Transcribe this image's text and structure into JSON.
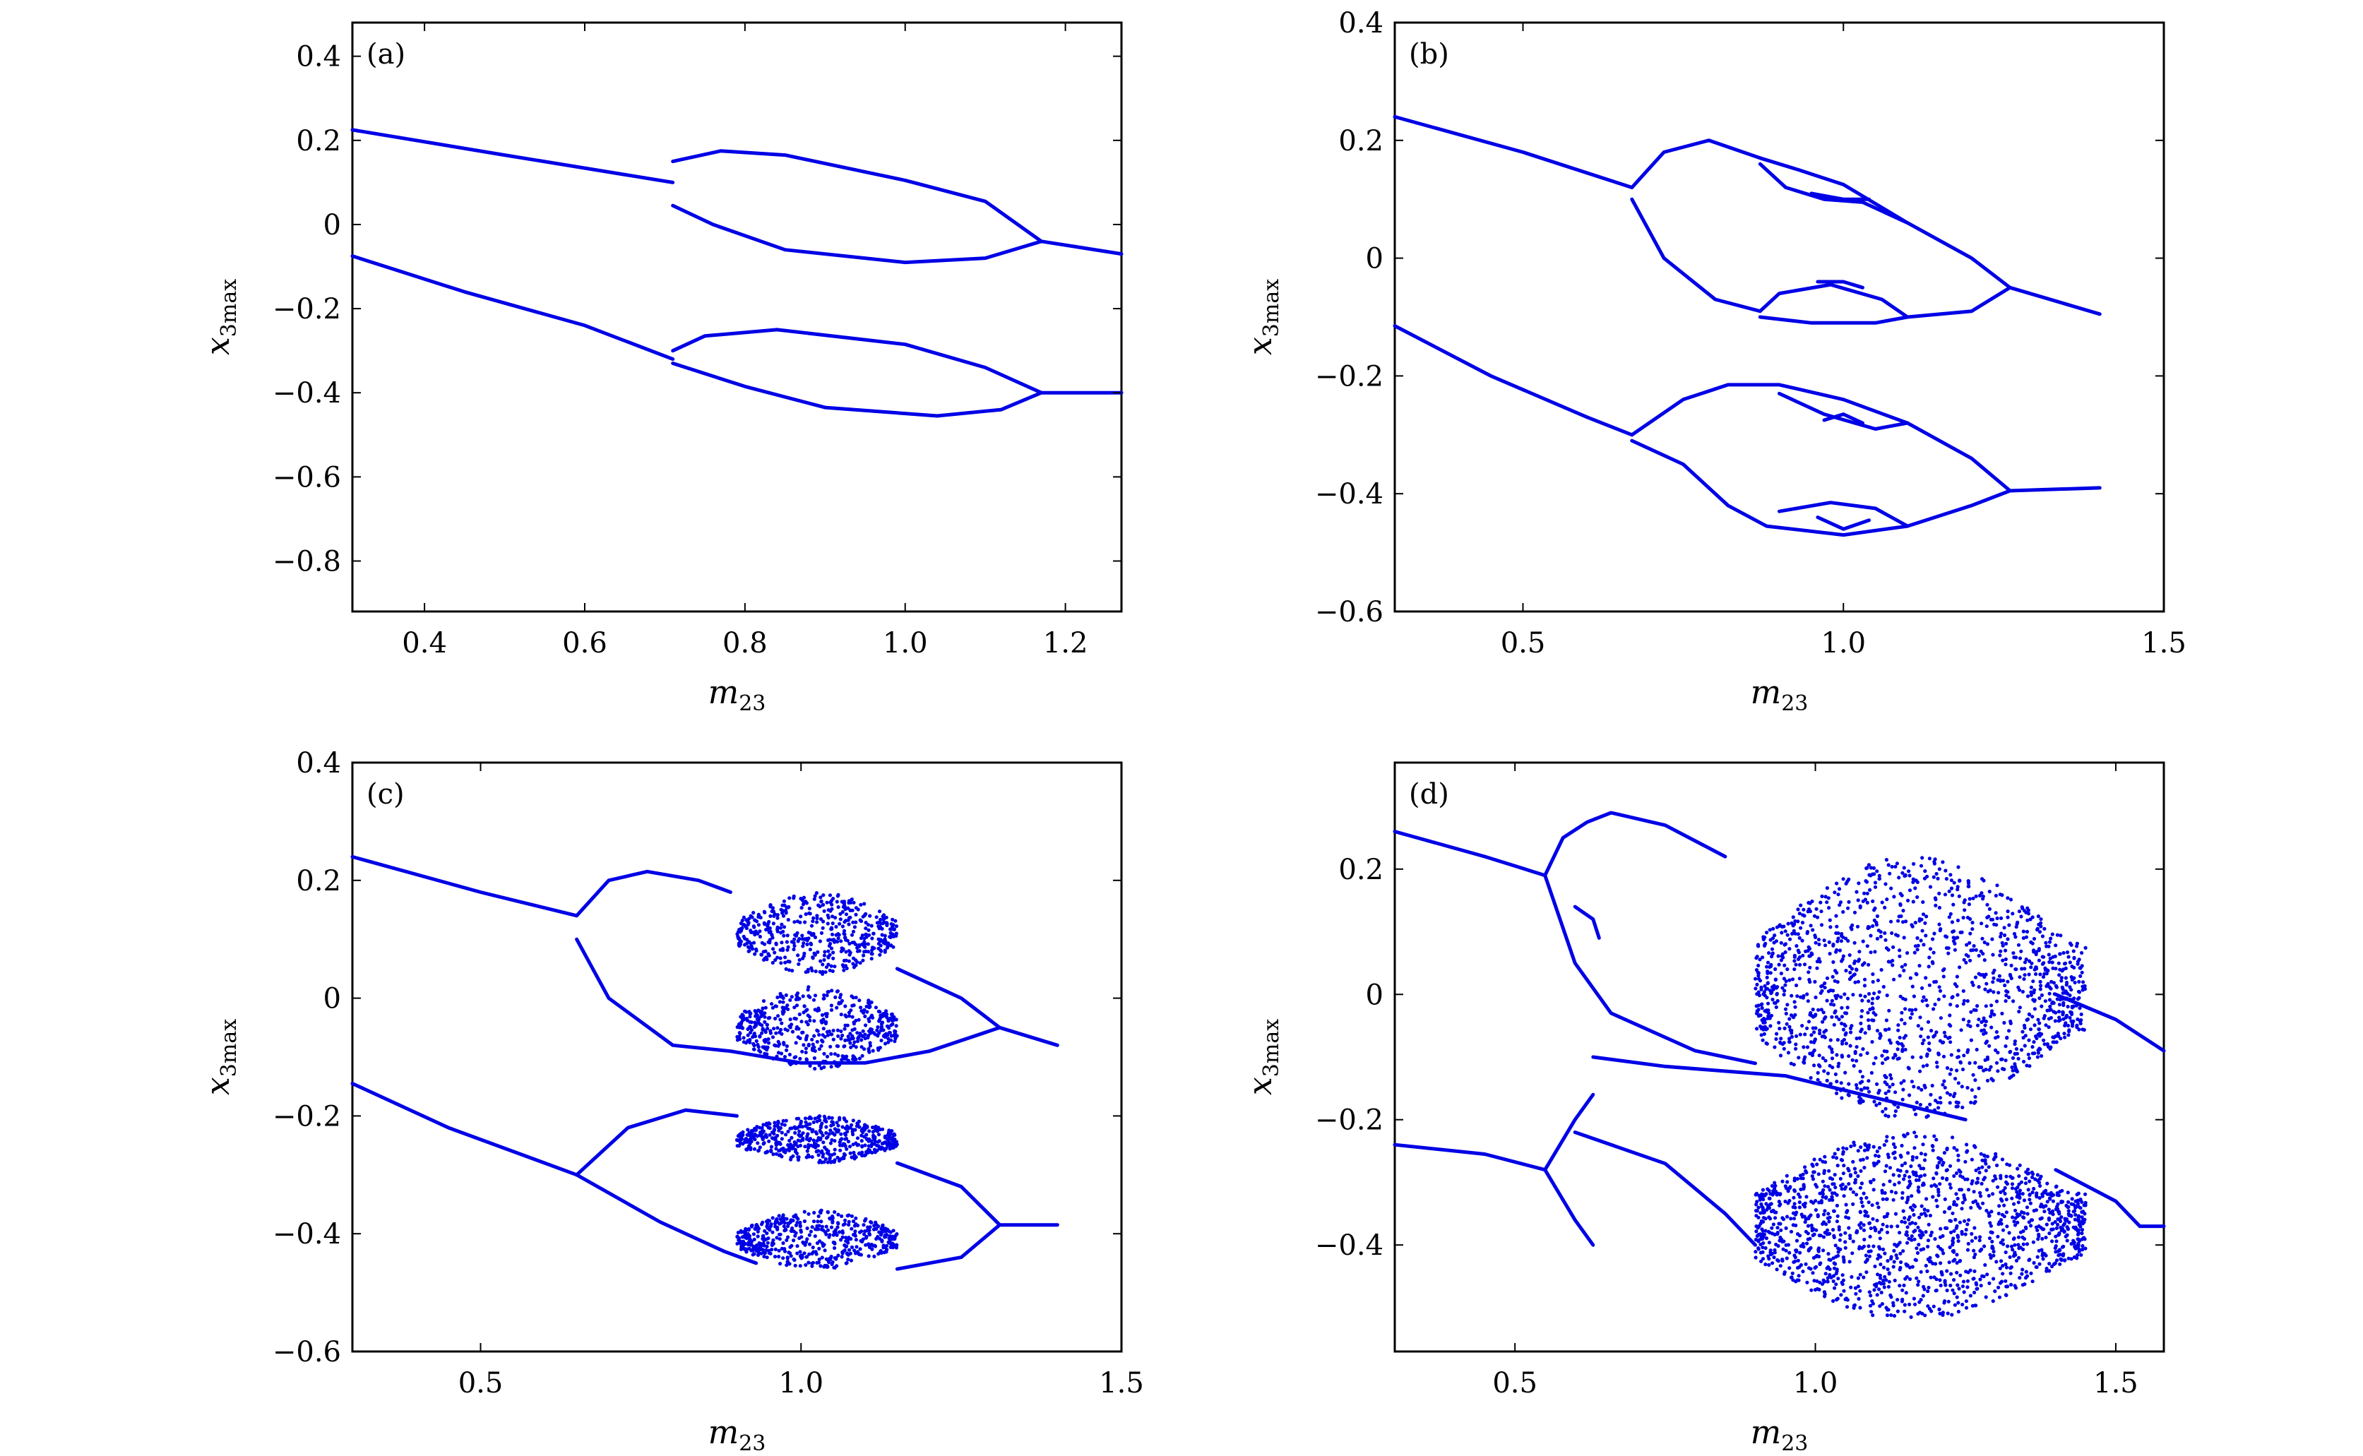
{
  "figure": {
    "accent_color": "#0000e6",
    "panels": [
      {
        "id": "a",
        "label": "(a)",
        "xlabel": "m23",
        "xlabel_main": "m",
        "xlabel_sub": "23",
        "ylabel_main": "x",
        "ylabel_sub": "3max"
      },
      {
        "id": "b",
        "label": "(b)",
        "xlabel": "m23",
        "xlabel_main": "m",
        "xlabel_sub": "23",
        "ylabel_main": "x",
        "ylabel_sub": "3max"
      },
      {
        "id": "c",
        "label": "(c)",
        "xlabel": "m23",
        "xlabel_main": "m",
        "xlabel_sub": "23",
        "ylabel_main": "x",
        "ylabel_sub": "3max"
      },
      {
        "id": "d",
        "label": "(d)",
        "xlabel": "m23",
        "xlabel_main": "m",
        "xlabel_sub": "23",
        "ylabel_main": "x",
        "ylabel_sub": "3max"
      }
    ]
  },
  "chart_data": [
    {
      "type": "scatter",
      "panel": "(a)",
      "xlabel": "m23",
      "ylabel": "x3max",
      "xlim": [
        0.31,
        1.27
      ],
      "ylim": [
        -0.92,
        0.48
      ],
      "xticks": [
        0.4,
        0.6,
        0.8,
        1.0,
        1.2
      ],
      "xtick_labels": [
        "0.4",
        "0.6",
        "0.8",
        "1.0",
        "1.2"
      ],
      "yticks": [
        0.4,
        0.2,
        0,
        -0.2,
        -0.4,
        -0.6,
        -0.8
      ],
      "ytick_labels": [
        "0.4",
        "0.2",
        "0",
        "−0.2",
        "−0.4",
        "−0.6",
        "−0.8"
      ],
      "series": [
        {
          "points": [
            [
              0.31,
              0.225
            ],
            [
              0.5,
              0.165
            ],
            [
              0.71,
              0.1
            ]
          ]
        },
        {
          "points": [
            [
              0.71,
              0.15
            ],
            [
              0.77,
              0.175
            ],
            [
              0.85,
              0.165
            ],
            [
              1.0,
              0.105
            ],
            [
              1.1,
              0.055
            ],
            [
              1.17,
              -0.04
            ]
          ]
        },
        {
          "points": [
            [
              0.71,
              0.045
            ],
            [
              0.76,
              0.0
            ],
            [
              0.85,
              -0.06
            ],
            [
              1.0,
              -0.09
            ],
            [
              1.1,
              -0.08
            ],
            [
              1.17,
              -0.04
            ]
          ]
        },
        {
          "points": [
            [
              1.17,
              -0.04
            ],
            [
              1.27,
              -0.07
            ]
          ]
        },
        {
          "points": [
            [
              0.31,
              -0.075
            ],
            [
              0.45,
              -0.16
            ],
            [
              0.6,
              -0.24
            ],
            [
              0.71,
              -0.32
            ]
          ]
        },
        {
          "points": [
            [
              0.71,
              -0.3
            ],
            [
              0.75,
              -0.265
            ],
            [
              0.84,
              -0.25
            ],
            [
              1.0,
              -0.285
            ],
            [
              1.1,
              -0.34
            ],
            [
              1.17,
              -0.4
            ]
          ]
        },
        {
          "points": [
            [
              0.71,
              -0.33
            ],
            [
              0.8,
              -0.385
            ],
            [
              0.9,
              -0.435
            ],
            [
              1.04,
              -0.455
            ],
            [
              1.12,
              -0.44
            ],
            [
              1.17,
              -0.4
            ]
          ]
        },
        {
          "points": [
            [
              1.17,
              -0.4
            ],
            [
              1.27,
              -0.4
            ]
          ]
        }
      ]
    },
    {
      "type": "scatter",
      "panel": "(b)",
      "xlabel": "m23",
      "ylabel": "x3max",
      "xlim": [
        0.3,
        1.5
      ],
      "ylim": [
        -0.6,
        0.4
      ],
      "xticks": [
        0.5,
        1.0,
        1.5
      ],
      "xtick_labels": [
        "0.5",
        "1.0",
        "1.5"
      ],
      "yticks": [
        0.4,
        0.2,
        0,
        -0.2,
        -0.4,
        -0.6
      ],
      "ytick_labels": [
        "0.4",
        "0.2",
        "0",
        "−0.2",
        "−0.4",
        "−0.6"
      ],
      "series": [
        {
          "points": [
            [
              0.3,
              0.24
            ],
            [
              0.5,
              0.18
            ],
            [
              0.67,
              0.12
            ]
          ]
        },
        {
          "points": [
            [
              0.67,
              0.12
            ],
            [
              0.72,
              0.18
            ],
            [
              0.79,
              0.2
            ],
            [
              0.87,
              0.17
            ]
          ]
        },
        {
          "points": [
            [
              0.67,
              0.1
            ],
            [
              0.72,
              0.0
            ],
            [
              0.8,
              -0.07
            ],
            [
              0.87,
              -0.09
            ]
          ]
        },
        {
          "points": [
            [
              0.87,
              0.17
            ],
            [
              0.93,
              0.15
            ],
            [
              1.0,
              0.125
            ],
            [
              1.1,
              0.06
            ],
            [
              1.2,
              0.0
            ],
            [
              1.26,
              -0.05
            ]
          ]
        },
        {
          "points": [
            [
              0.87,
              0.16
            ],
            [
              0.91,
              0.12
            ],
            [
              0.97,
              0.1
            ],
            [
              1.03,
              0.095
            ],
            [
              1.1,
              0.06
            ]
          ]
        },
        {
          "points": [
            [
              0.87,
              -0.09
            ],
            [
              0.9,
              -0.06
            ],
            [
              0.98,
              -0.045
            ],
            [
              1.06,
              -0.07
            ],
            [
              1.1,
              -0.1
            ]
          ]
        },
        {
          "points": [
            [
              0.87,
              -0.1
            ],
            [
              0.95,
              -0.11
            ],
            [
              1.05,
              -0.11
            ],
            [
              1.1,
              -0.1
            ]
          ]
        },
        {
          "points": [
            [
              1.1,
              -0.1
            ],
            [
              1.2,
              -0.09
            ],
            [
              1.26,
              -0.05
            ]
          ]
        },
        {
          "points": [
            [
              1.26,
              -0.05
            ],
            [
              1.4,
              -0.095
            ]
          ]
        },
        {
          "points": [
            [
              0.95,
              0.11
            ],
            [
              1.0,
              0.1
            ],
            [
              1.04,
              0.1
            ]
          ]
        },
        {
          "points": [
            [
              0.96,
              -0.04
            ],
            [
              1.0,
              -0.04
            ],
            [
              1.03,
              -0.05
            ]
          ]
        },
        {
          "points": [
            [
              0.3,
              -0.115
            ],
            [
              0.45,
              -0.2
            ],
            [
              0.6,
              -0.27
            ],
            [
              0.67,
              -0.3
            ]
          ]
        },
        {
          "points": [
            [
              0.67,
              -0.3
            ],
            [
              0.75,
              -0.24
            ],
            [
              0.82,
              -0.215
            ],
            [
              0.9,
              -0.215
            ],
            [
              1.0,
              -0.24
            ],
            [
              1.1,
              -0.28
            ],
            [
              1.2,
              -0.34
            ],
            [
              1.26,
              -0.395
            ]
          ]
        },
        {
          "points": [
            [
              0.67,
              -0.31
            ],
            [
              0.75,
              -0.35
            ],
            [
              0.82,
              -0.42
            ],
            [
              0.88,
              -0.455
            ],
            [
              1.0,
              -0.47
            ],
            [
              1.1,
              -0.455
            ],
            [
              1.2,
              -0.42
            ],
            [
              1.26,
              -0.395
            ]
          ]
        },
        {
          "points": [
            [
              0.9,
              -0.23
            ],
            [
              0.97,
              -0.265
            ],
            [
              1.05,
              -0.29
            ],
            [
              1.1,
              -0.28
            ]
          ]
        },
        {
          "points": [
            [
              0.9,
              -0.43
            ],
            [
              0.98,
              -0.415
            ],
            [
              1.05,
              -0.425
            ],
            [
              1.1,
              -0.455
            ]
          ]
        },
        {
          "points": [
            [
              0.97,
              -0.275
            ],
            [
              1.0,
              -0.265
            ],
            [
              1.03,
              -0.28
            ]
          ]
        },
        {
          "points": [
            [
              0.96,
              -0.44
            ],
            [
              1.0,
              -0.46
            ],
            [
              1.04,
              -0.445
            ]
          ]
        },
        {
          "points": [
            [
              1.26,
              -0.395
            ],
            [
              1.4,
              -0.39
            ]
          ]
        }
      ]
    },
    {
      "type": "scatter",
      "panel": "(c)",
      "xlabel": "m23",
      "ylabel": "x3max",
      "xlim": [
        0.3,
        1.5
      ],
      "ylim": [
        -0.6,
        0.4
      ],
      "xticks": [
        0.5,
        1.0,
        1.5
      ],
      "xtick_labels": [
        "0.5",
        "1.0",
        "1.5"
      ],
      "yticks": [
        0.4,
        0.2,
        0,
        -0.2,
        -0.4,
        -0.6
      ],
      "ytick_labels": [
        "0.4",
        "0.2",
        "0",
        "−0.2",
        "−0.4",
        "−0.6"
      ],
      "series": [
        {
          "points": [
            [
              0.3,
              0.24
            ],
            [
              0.5,
              0.18
            ],
            [
              0.65,
              0.14
            ]
          ]
        },
        {
          "points": [
            [
              0.65,
              0.14
            ],
            [
              0.7,
              0.2
            ],
            [
              0.76,
              0.215
            ],
            [
              0.84,
              0.2
            ],
            [
              0.89,
              0.18
            ]
          ]
        },
        {
          "points": [
            [
              0.65,
              0.1
            ],
            [
              0.7,
              0.0
            ],
            [
              0.8,
              -0.08
            ],
            [
              0.89,
              -0.09
            ]
          ]
        },
        {
          "points": [
            [
              1.15,
              0.05
            ],
            [
              1.25,
              0.0
            ],
            [
              1.31,
              -0.05
            ]
          ]
        },
        {
          "points": [
            [
              1.31,
              -0.05
            ],
            [
              1.4,
              -0.08
            ]
          ]
        },
        {
          "points": [
            [
              0.89,
              -0.09
            ],
            [
              1.0,
              -0.11
            ],
            [
              1.1,
              -0.11
            ],
            [
              1.2,
              -0.09
            ],
            [
              1.31,
              -0.05
            ]
          ]
        },
        {
          "points": [
            [
              0.3,
              -0.145
            ],
            [
              0.45,
              -0.22
            ],
            [
              0.6,
              -0.28
            ],
            [
              0.65,
              -0.3
            ]
          ]
        },
        {
          "points": [
            [
              0.65,
              -0.3
            ],
            [
              0.73,
              -0.22
            ],
            [
              0.82,
              -0.19
            ],
            [
              0.9,
              -0.2
            ]
          ]
        },
        {
          "points": [
            [
              0.65,
              -0.3
            ],
            [
              0.78,
              -0.38
            ],
            [
              0.88,
              -0.43
            ],
            [
              0.93,
              -0.45
            ]
          ]
        },
        {
          "points": [
            [
              1.15,
              -0.28
            ],
            [
              1.25,
              -0.32
            ],
            [
              1.31,
              -0.385
            ]
          ]
        },
        {
          "points": [
            [
              1.15,
              -0.46
            ],
            [
              1.25,
              -0.44
            ],
            [
              1.31,
              -0.385
            ]
          ]
        },
        {
          "points": [
            [
              1.31,
              -0.385
            ],
            [
              1.4,
              -0.385
            ]
          ]
        }
      ]
    },
    {
      "type": "scatter",
      "panel": "(d)",
      "xlabel": "m23",
      "ylabel": "x3max",
      "xlim": [
        0.3,
        1.58
      ],
      "ylim": [
        -0.57,
        0.37
      ],
      "xticks": [
        0.5,
        1.0,
        1.5
      ],
      "xtick_labels": [
        "0.5",
        "1.0",
        "1.5"
      ],
      "yticks": [
        0.2,
        0,
        -0.2,
        -0.4
      ],
      "ytick_labels": [
        "0.2",
        "0",
        "−0.2",
        "−0.4"
      ],
      "series": [
        {
          "points": [
            [
              0.3,
              0.26
            ],
            [
              0.45,
              0.22
            ],
            [
              0.55,
              0.19
            ]
          ]
        },
        {
          "points": [
            [
              0.55,
              0.19
            ],
            [
              0.58,
              0.25
            ],
            [
              0.62,
              0.275
            ],
            [
              0.66,
              0.29
            ],
            [
              0.75,
              0.27
            ],
            [
              0.85,
              0.22
            ]
          ]
        },
        {
          "points": [
            [
              0.55,
              0.19
            ],
            [
              0.6,
              0.05
            ],
            [
              0.66,
              -0.03
            ],
            [
              0.8,
              -0.09
            ],
            [
              0.9,
              -0.11
            ]
          ]
        },
        {
          "points": [
            [
              0.6,
              0.14
            ],
            [
              0.63,
              0.12
            ],
            [
              0.64,
              0.09
            ]
          ]
        },
        {
          "points": [
            [
              0.63,
              -0.1
            ],
            [
              0.75,
              -0.115
            ],
            [
              0.95,
              -0.13
            ],
            [
              1.1,
              -0.165
            ],
            [
              1.25,
              -0.2
            ]
          ]
        },
        {
          "points": [
            [
              1.4,
              0.0
            ],
            [
              1.5,
              -0.04
            ],
            [
              1.58,
              -0.09
            ]
          ]
        },
        {
          "points": [
            [
              0.3,
              -0.24
            ],
            [
              0.45,
              -0.255
            ],
            [
              0.55,
              -0.28
            ]
          ]
        },
        {
          "points": [
            [
              0.55,
              -0.28
            ],
            [
              0.6,
              -0.2
            ],
            [
              0.63,
              -0.16
            ]
          ]
        },
        {
          "points": [
            [
              0.55,
              -0.28
            ],
            [
              0.6,
              -0.36
            ],
            [
              0.63,
              -0.4
            ]
          ]
        },
        {
          "points": [
            [
              0.6,
              -0.22
            ],
            [
              0.75,
              -0.27
            ],
            [
              0.85,
              -0.35
            ],
            [
              0.9,
              -0.4
            ]
          ]
        },
        {
          "points": [
            [
              1.4,
              -0.28
            ],
            [
              1.5,
              -0.33
            ],
            [
              1.54,
              -0.37
            ]
          ]
        },
        {
          "points": [
            [
              1.54,
              -0.37
            ],
            [
              1.58,
              -0.37
            ]
          ]
        }
      ],
      "chaotic_regions": [
        {
          "x": [
            0.9,
            1.45
          ],
          "y": [
            -0.46,
            0.22
          ]
        }
      ]
    }
  ]
}
